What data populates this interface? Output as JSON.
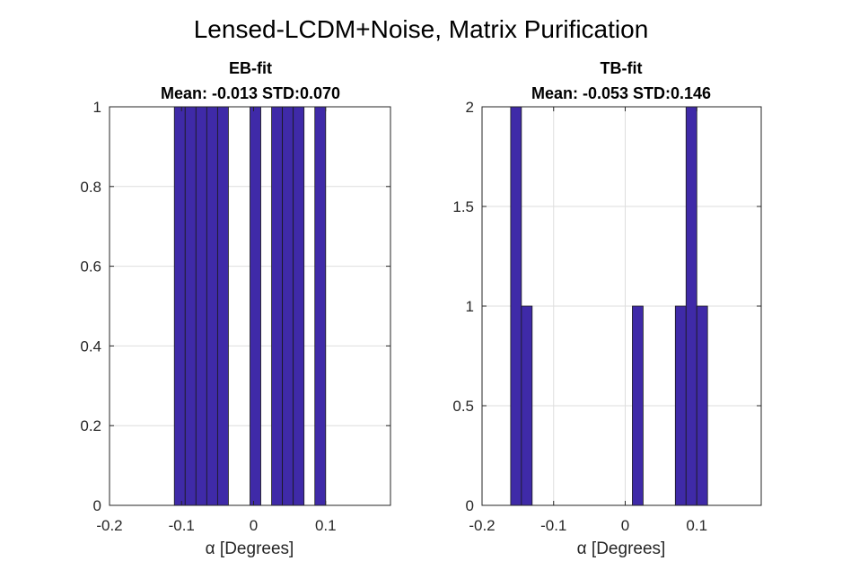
{
  "figure_title": "Lensed-LCDM+Noise, Matrix Purification",
  "chart_data": [
    {
      "type": "bar",
      "title": [
        "EB-fit",
        "Mean: -0.013 STD:0.070"
      ],
      "xlabel": "α [Degrees]",
      "ylabel": "",
      "xlim": [
        -0.2,
        0.19
      ],
      "ylim": [
        0,
        1
      ],
      "xticks": [
        -0.2,
        -0.1,
        0,
        0.1
      ],
      "xtick_labels": [
        "-0.2",
        "-0.1",
        "0",
        "0.1"
      ],
      "yticks": [
        0,
        0.2,
        0.4,
        0.6,
        0.8,
        1
      ],
      "ytick_labels": [
        "0",
        "0.2",
        "0.4",
        "0.6",
        "0.8",
        "1"
      ],
      "bin_width": 0.015,
      "bins": [
        {
          "left": -0.11,
          "right": -0.095,
          "count": 1
        },
        {
          "left": -0.095,
          "right": -0.08,
          "count": 1
        },
        {
          "left": -0.08,
          "right": -0.065,
          "count": 1
        },
        {
          "left": -0.065,
          "right": -0.05,
          "count": 1
        },
        {
          "left": -0.05,
          "right": -0.035,
          "count": 1
        },
        {
          "left": -0.005,
          "right": 0.01,
          "count": 1
        },
        {
          "left": 0.025,
          "right": 0.04,
          "count": 1
        },
        {
          "left": 0.04,
          "right": 0.055,
          "count": 1
        },
        {
          "left": 0.055,
          "right": 0.07,
          "count": 1
        },
        {
          "left": 0.085,
          "right": 0.1,
          "count": 1
        }
      ],
      "grid": true,
      "bar_color": "#3f2aa8"
    },
    {
      "type": "bar",
      "title": [
        "TB-fit",
        "Mean: -0.053 STD:0.146"
      ],
      "xlabel": "α [Degrees]",
      "ylabel": "",
      "xlim": [
        -0.2,
        0.19
      ],
      "ylim": [
        0,
        2
      ],
      "xticks": [
        -0.2,
        -0.1,
        0,
        0.1
      ],
      "xtick_labels": [
        "-0.2",
        "-0.1",
        "0",
        "0.1"
      ],
      "yticks": [
        0,
        0.5,
        1,
        1.5,
        2
      ],
      "ytick_labels": [
        "0",
        "0.5",
        "1",
        "1.5",
        "2"
      ],
      "bin_width": 0.015,
      "bins": [
        {
          "left": -0.16,
          "right": -0.145,
          "count": 2
        },
        {
          "left": -0.145,
          "right": -0.13,
          "count": 1
        },
        {
          "left": 0.01,
          "right": 0.025,
          "count": 1
        },
        {
          "left": 0.07,
          "right": 0.085,
          "count": 1
        },
        {
          "left": 0.085,
          "right": 0.1,
          "count": 2
        },
        {
          "left": 0.1,
          "right": 0.115,
          "count": 1
        }
      ],
      "grid": true,
      "bar_color": "#3f2aa8"
    }
  ]
}
